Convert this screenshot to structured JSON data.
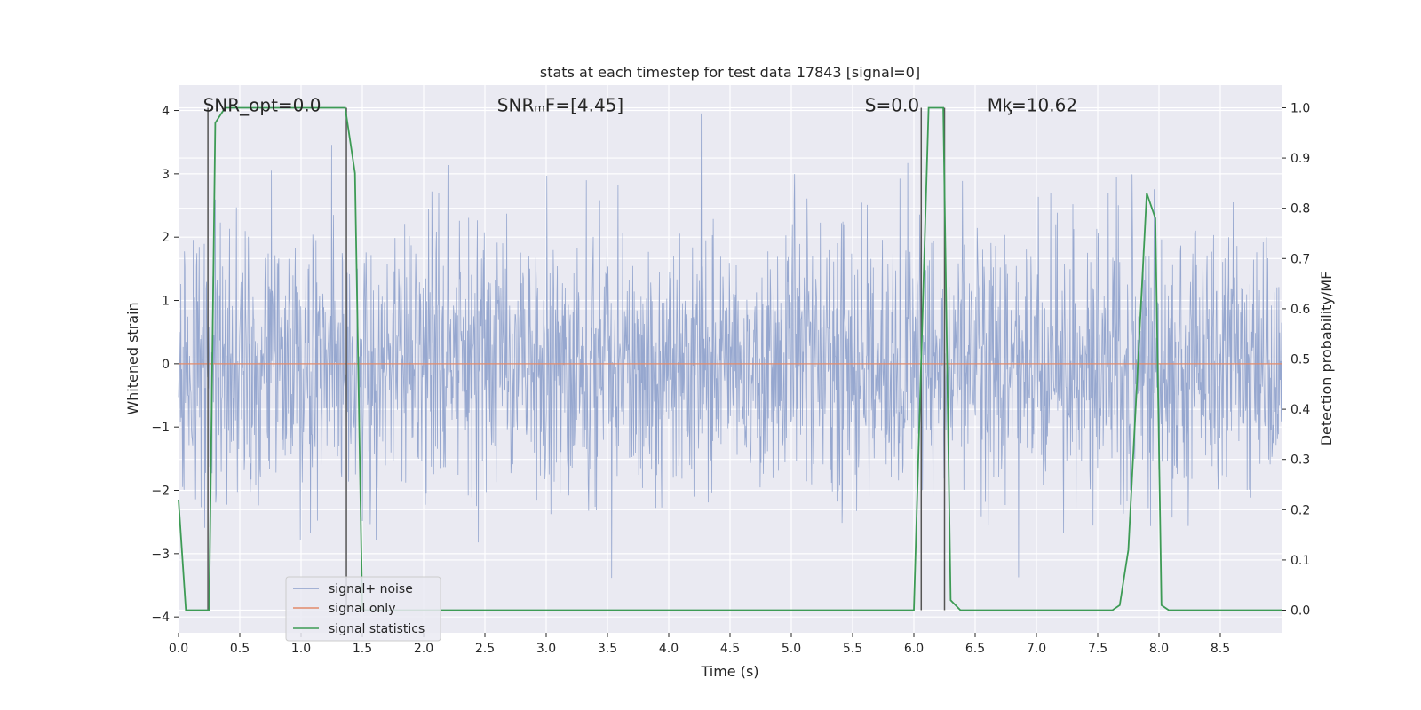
{
  "chart_data": {
    "type": "line",
    "title": "stats at each timestep for test data 17843 [signal=0]",
    "xlabel": "Time (s)",
    "ylabel": "Whitened strain",
    "ylabel_right": "Detection probability/MF",
    "xlim": [
      0,
      9.0
    ],
    "ylim": [
      -4.25,
      4.4
    ],
    "ylim_right": [
      -0.045,
      1.045
    ],
    "x_ticks": [
      0.0,
      0.5,
      1.0,
      1.5,
      2.0,
      2.5,
      3.0,
      3.5,
      4.0,
      4.5,
      5.0,
      5.5,
      6.0,
      6.5,
      7.0,
      7.5,
      8.0,
      8.5
    ],
    "x_tick_labels": [
      "0.0",
      "0.5",
      "1.0",
      "1.5",
      "2.0",
      "2.5",
      "3.0",
      "3.5",
      "4.0",
      "4.5",
      "5.0",
      "5.5",
      "6.0",
      "6.5",
      "7.0",
      "7.5",
      "8.0",
      "8.5"
    ],
    "y_ticks": [
      4,
      3,
      2,
      1,
      0,
      -1,
      -2,
      -3,
      -4
    ],
    "y_tick_labels": [
      "4",
      "3",
      "2",
      "1",
      "0",
      "−1",
      "−2",
      "−3",
      "−4"
    ],
    "y2_ticks": [
      1.0,
      0.9,
      0.8,
      0.7,
      0.6,
      0.5,
      0.4,
      0.3,
      0.2,
      0.1,
      0.0
    ],
    "y2_tick_labels": [
      "1.0",
      "0.9",
      "0.8",
      "0.7",
      "0.6",
      "0.5",
      "0.4",
      "0.3",
      "0.2",
      "0.1",
      "0.0"
    ],
    "annotations": [
      {
        "text": "SNR_opt=0.0",
        "x": 0.2,
        "y": 4.0
      },
      {
        "text": "SNRₘF=[4.45]",
        "x": 2.6,
        "y": 4.0
      },
      {
        "text": "S=0.0",
        "x": 5.6,
        "y": 4.0
      },
      {
        "text": "Mᶄ=10.62",
        "x": 6.6,
        "y": 4.0
      }
    ],
    "series": [
      {
        "name": "signal+ noise",
        "color": "#8da0cb",
        "axis": "left",
        "style": "gaussian noise, sigma ~1.05, 4096 samples/s",
        "seed": 17843
      },
      {
        "name": "signal only",
        "color": "#e28a6b",
        "axis": "left",
        "x": [
          0.0,
          9.0
        ],
        "y": [
          0.0,
          0.0
        ]
      },
      {
        "name": "signal statistics",
        "color": "#3d9b55",
        "axis": "right",
        "x": [
          0.0,
          0.06,
          0.25,
          0.3,
          0.38,
          1.36,
          1.44,
          1.5,
          6.0,
          6.12,
          6.24,
          6.3,
          6.38,
          7.62,
          7.68,
          7.75,
          7.9,
          7.97,
          8.02,
          8.08,
          9.0
        ],
        "y": [
          0.22,
          0.0,
          0.0,
          0.97,
          1.0,
          1.0,
          0.87,
          0.0,
          0.0,
          1.0,
          1.0,
          0.02,
          0.0,
          0.0,
          0.01,
          0.12,
          0.83,
          0.78,
          0.01,
          0.0,
          0.0
        ]
      },
      {
        "name": "mark lines",
        "color": "#555555",
        "axis": "right",
        "x": [
          0.24,
          1.37,
          6.06,
          6.25
        ],
        "y": [
          1.0,
          1.0,
          1.0,
          1.0
        ],
        "legend": false
      }
    ],
    "legend": {
      "position": "lower-left",
      "entries": [
        "signal+ noise",
        "signal only",
        "signal statistics"
      ]
    },
    "grid": true,
    "background": "#eaeaf2"
  }
}
